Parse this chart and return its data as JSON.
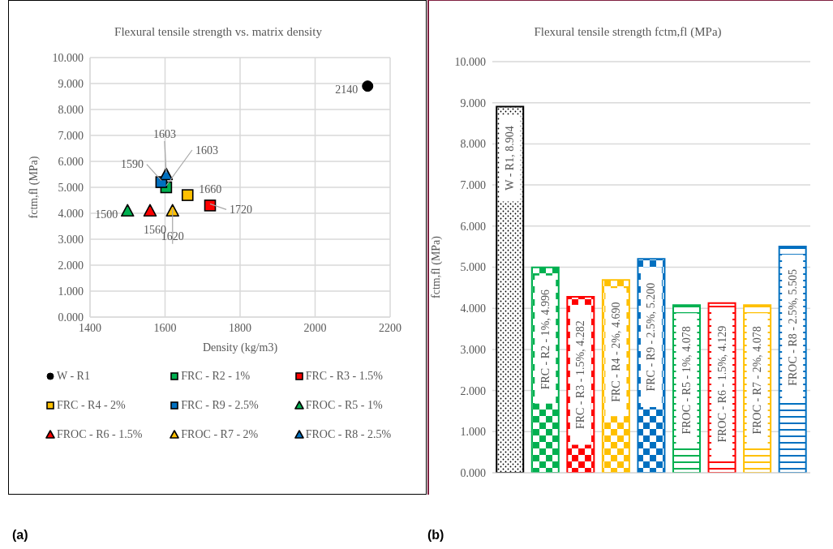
{
  "chart_data": [
    {
      "type": "scatter",
      "title": "Flexural tensile strength vs. matrix density",
      "xlabel": "Density (kg/m3)",
      "ylabel": "fctm,fl (MPa)",
      "xlim": [
        1400,
        2200
      ],
      "xticks": [
        1400,
        1600,
        1800,
        2000,
        2200
      ],
      "ylim": [
        0,
        10
      ],
      "yticks": [
        {
          "value": 0,
          "label": "0.000"
        },
        {
          "value": 1,
          "label": "1.000"
        },
        {
          "value": 2,
          "label": "2.000"
        },
        {
          "value": 3,
          "label": "3.000"
        },
        {
          "value": 4,
          "label": "4.000"
        },
        {
          "value": 5,
          "label": "5.000"
        },
        {
          "value": 6,
          "label": "6.000"
        },
        {
          "value": 7,
          "label": "7.000"
        },
        {
          "value": 8,
          "label": "8.000"
        },
        {
          "value": 9,
          "label": "9.000"
        },
        {
          "value": 10,
          "label": "10.000"
        }
      ],
      "grid": true,
      "legend": "bottom",
      "annotations": [
        {
          "text": "2140",
          "x": 2140,
          "y": 8.9
        },
        {
          "text": "1603",
          "x": 1603,
          "y": 5.0
        },
        {
          "text": "1720",
          "x": 1720,
          "y": 4.3
        },
        {
          "text": "1660",
          "x": 1660,
          "y": 4.7
        },
        {
          "text": "1590",
          "x": 1590,
          "y": 5.2
        },
        {
          "text": "1500",
          "x": 1500,
          "y": 4.1
        },
        {
          "text": "1560",
          "x": 1560,
          "y": 4.1
        },
        {
          "text": "1620",
          "x": 1620,
          "y": 4.1
        },
        {
          "text": "1603",
          "x": 1603,
          "y": 5.5
        },
        "(a)"
      ],
      "series": [
        {
          "name": "W - R1",
          "color": "#000000",
          "marker": "circle",
          "x": [
            2140
          ],
          "values": [
            8.9
          ]
        },
        {
          "name": "FRC - R2 - 1%",
          "color": "#00b050",
          "marker": "square",
          "x": [
            1603
          ],
          "values": [
            5.0
          ]
        },
        {
          "name": "FRC - R3 - 1.5%",
          "color": "#ff0000",
          "marker": "square",
          "x": [
            1720
          ],
          "values": [
            4.3
          ]
        },
        {
          "name": "FRC - R4 - 2%",
          "color": "#ffc000",
          "marker": "square",
          "x": [
            1660
          ],
          "values": [
            4.7
          ]
        },
        {
          "name": "FRC - R9 - 2.5%",
          "color": "#0070c0",
          "marker": "square",
          "x": [
            1590
          ],
          "values": [
            5.2
          ]
        },
        {
          "name": "FROC - R5 - 1%",
          "color": "#00b050",
          "marker": "triangle",
          "x": [
            1500
          ],
          "values": [
            4.1
          ]
        },
        {
          "name": "FROC - R6 - 1.5%",
          "color": "#ff0000",
          "marker": "triangle",
          "x": [
            1560
          ],
          "values": [
            4.1
          ]
        },
        {
          "name": "FROC - R7 - 2%",
          "color": "#ffc000",
          "marker": "triangle",
          "x": [
            1620
          ],
          "values": [
            4.1
          ]
        },
        {
          "name": "FROC - R8 - 2.5%",
          "color": "#0070c0",
          "marker": "triangle",
          "x": [
            1603
          ],
          "values": [
            5.5
          ]
        }
      ]
    },
    {
      "type": "bar",
      "title": "Flexural tensile strength fctm,fl (MPa)",
      "ylabel": "fctm,fl (MPa)",
      "categories": [
        null,
        null,
        null,
        null,
        null,
        null,
        null,
        null,
        null
      ],
      "values": [
        8.904,
        4.996,
        4.282,
        4.69,
        5.2,
        4.078,
        4.129,
        4.078,
        5.505
      ],
      "colors": [
        "#000000",
        "#00b050",
        "#ff0000",
        "#ffc000",
        "#0070c0",
        "#00b050",
        "#ff0000",
        "#ffc000",
        "#0070c0"
      ],
      "value_labels": [
        "W - R1, 8.904",
        "FRC - R2 - 1%, 4.996",
        "FRC - R3 - 1.5%, 4.282",
        "FRC - R4 - 2%, 4.690",
        "FRC - R9 - 2.5%, 5.200",
        "FROC - R5 - 1%, 4.078",
        "FROC - R6 - 1.5%, 4.129",
        "FROC - R7 - 2%, 4.078",
        "FROC - R8 - 2.5%, 5.505"
      ],
      "ylim": [
        0,
        10
      ],
      "yticks": [
        {
          "value": 0,
          "label": "0.000"
        },
        {
          "value": 1,
          "label": "1.000"
        },
        {
          "value": 2,
          "label": "2.000"
        },
        {
          "value": 3,
          "label": "3.000"
        },
        {
          "value": 4,
          "label": "4.000"
        },
        {
          "value": 5,
          "label": "5.000"
        },
        {
          "value": 6,
          "label": "6.000"
        },
        {
          "value": 7,
          "label": "7.000"
        },
        {
          "value": 8,
          "label": "8.000"
        },
        {
          "value": 9,
          "label": "9.000"
        },
        {
          "value": 10,
          "label": "10.000"
        }
      ],
      "grid": "y",
      "annotations": [
        "(b)"
      ]
    }
  ]
}
